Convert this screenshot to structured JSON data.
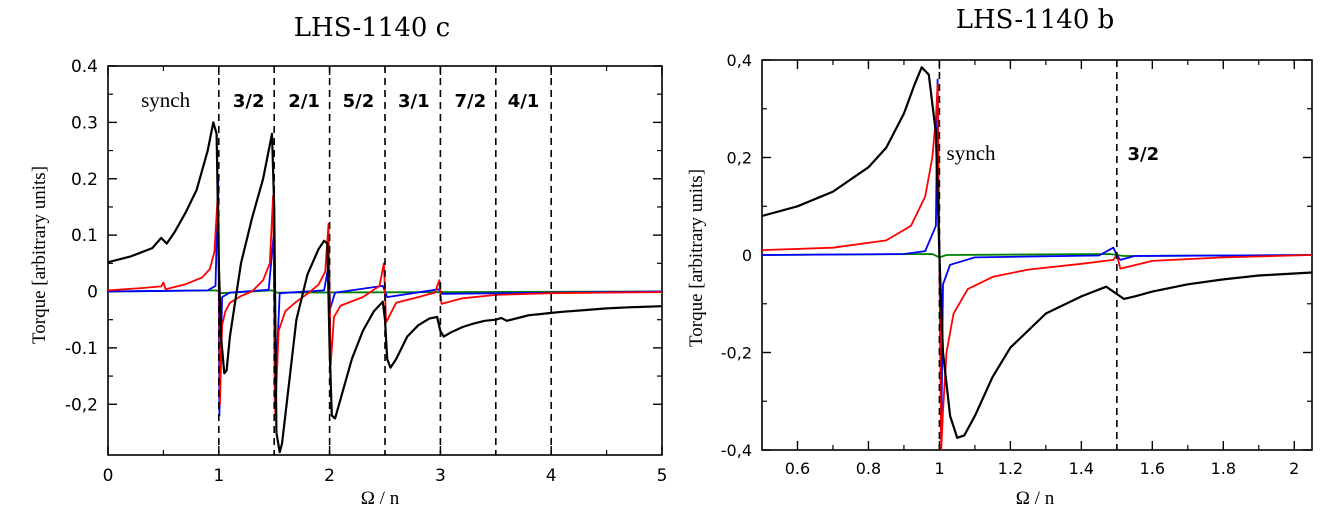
{
  "chart_data": [
    {
      "type": "line",
      "title": "LHS-1140 c",
      "xlabel": "Ω / n",
      "ylabel": "Torque [arbitrary units]",
      "xlim": [
        0,
        5
      ],
      "ylim": [
        -0.29,
        0.4
      ],
      "xticks": [
        0,
        1,
        2,
        3,
        4,
        5
      ],
      "xtick_labels": [
        "0",
        "1",
        "2",
        "3",
        "4",
        "5"
      ],
      "yticks": [
        0.4,
        0.3,
        0.2,
        0.1,
        0,
        -0.1,
        -0.2
      ],
      "ytick_labels": [
        "0.4",
        "0.3",
        "0.2",
        "0.1",
        "0",
        "-0.1",
        "-0,2"
      ],
      "resonances": [
        1,
        1.5,
        2,
        2.5,
        3,
        3.5,
        4
      ],
      "annotations": [
        {
          "text": "synch",
          "x": 0.52
        },
        {
          "text": "3/2",
          "x": 1.27
        },
        {
          "text": "2/1",
          "x": 1.77
        },
        {
          "text": "5/2",
          "x": 2.26
        },
        {
          "text": "3/1",
          "x": 2.76
        },
        {
          "text": "7/2",
          "x": 3.27
        },
        {
          "text": "4/1",
          "x": 3.75
        }
      ],
      "series": [
        {
          "name": "black",
          "color": "#000000",
          "x": [
            0,
            0.2,
            0.4,
            0.48,
            0.53,
            0.6,
            0.7,
            0.8,
            0.9,
            0.95,
            0.98,
            1.0,
            1.02,
            1.05,
            1.07,
            1.1,
            1.2,
            1.3,
            1.4,
            1.45,
            1.48,
            1.5,
            1.52,
            1.55,
            1.57,
            1.6,
            1.7,
            1.8,
            1.9,
            1.95,
            1.98,
            2.0,
            2.02,
            2.05,
            2.1,
            2.2,
            2.3,
            2.4,
            2.48,
            2.5,
            2.52,
            2.55,
            2.6,
            2.7,
            2.8,
            2.9,
            2.97,
            3.0,
            3.03,
            3.1,
            3.2,
            3.3,
            3.4,
            3.5,
            3.55,
            3.6,
            3.7,
            3.8,
            3.9,
            4.0,
            4.1,
            4.3,
            4.5,
            4.7,
            5.0
          ],
          "y": [
            0.052,
            0.062,
            0.077,
            0.095,
            0.085,
            0.105,
            0.14,
            0.18,
            0.25,
            0.3,
            0.28,
            0.05,
            -0.08,
            -0.145,
            -0.14,
            -0.08,
            0.05,
            0.13,
            0.2,
            0.25,
            0.28,
            0.15,
            -0.25,
            -0.285,
            -0.27,
            -0.22,
            -0.05,
            0.03,
            0.075,
            0.09,
            0.085,
            -0.1,
            -0.22,
            -0.225,
            -0.19,
            -0.12,
            -0.07,
            -0.035,
            -0.018,
            -0.05,
            -0.12,
            -0.135,
            -0.12,
            -0.08,
            -0.06,
            -0.048,
            -0.045,
            -0.07,
            -0.08,
            -0.072,
            -0.063,
            -0.057,
            -0.052,
            -0.05,
            -0.047,
            -0.052,
            -0.047,
            -0.042,
            -0.04,
            -0.038,
            -0.036,
            -0.033,
            -0.03,
            -0.028,
            -0.026
          ]
        },
        {
          "name": "red",
          "color": "#ff0000",
          "x": [
            0,
            0.3,
            0.48,
            0.5,
            0.52,
            0.7,
            0.85,
            0.92,
            0.96,
            0.99,
            1.0,
            1.01,
            1.03,
            1.06,
            1.1,
            1.2,
            1.3,
            1.4,
            1.46,
            1.49,
            1.5,
            1.51,
            1.54,
            1.6,
            1.7,
            1.8,
            1.9,
            1.96,
            1.99,
            2.0,
            2.01,
            2.04,
            2.1,
            2.3,
            2.45,
            2.49,
            2.5,
            2.51,
            2.6,
            2.8,
            2.95,
            2.99,
            3.0,
            3.01,
            3.2,
            3.5,
            4.0,
            4.5,
            5.0
          ],
          "y": [
            0.002,
            0.006,
            0.009,
            0.016,
            0.004,
            0.013,
            0.025,
            0.04,
            0.07,
            0.17,
            0.1,
            -0.2,
            -0.06,
            -0.035,
            -0.02,
            -0.008,
            0.0,
            0.02,
            0.05,
            0.17,
            0.0,
            -0.22,
            -0.07,
            -0.035,
            -0.018,
            -0.004,
            0.012,
            0.035,
            0.12,
            0.0,
            -0.13,
            -0.045,
            -0.025,
            -0.01,
            0.01,
            0.05,
            0.0,
            -0.055,
            -0.02,
            -0.01,
            -0.002,
            0.02,
            -0.005,
            -0.022,
            -0.012,
            -0.006,
            -0.003,
            -0.002,
            -0.001
          ]
        },
        {
          "name": "blue",
          "color": "#0000ff",
          "x": [
            0,
            0.9,
            0.97,
            0.995,
            1.0,
            1.005,
            1.03,
            1.1,
            1.45,
            1.495,
            1.5,
            1.505,
            1.55,
            1.95,
            1.995,
            2.0,
            2.005,
            2.05,
            2.48,
            2.5,
            2.52,
            2.98,
            3.0,
            3.02,
            5.0
          ],
          "y": [
            0,
            0.002,
            0.01,
            0.2,
            0.0,
            -0.22,
            -0.01,
            -0.002,
            0.003,
            0.1,
            0.0,
            -0.2,
            -0.003,
            0.002,
            0.05,
            0.0,
            -0.03,
            -0.002,
            0.01,
            0.0,
            -0.01,
            0.004,
            0.0,
            -0.004,
            0.0
          ]
        },
        {
          "name": "green",
          "color": "#008000",
          "x": [
            0,
            0.98,
            1.0,
            1.02,
            1.48,
            1.5,
            1.52,
            5.0
          ],
          "y": [
            0,
            0.002,
            0.0,
            -0.003,
            0.002,
            0.0,
            -0.002,
            0.0
          ]
        }
      ]
    },
    {
      "type": "line",
      "title": "LHS-1140  b",
      "xlabel": "Ω / n",
      "ylabel": "Torque [arbitrary units]",
      "xlim": [
        0.5,
        2.05
      ],
      "ylim": [
        -0.4,
        0.4
      ],
      "xticks": [
        0.6,
        0.8,
        1,
        1.2,
        1.4,
        1.6,
        1.8,
        2
      ],
      "xtick_labels": [
        "0.6",
        "0.8",
        "1",
        "1.2",
        "1.4",
        "1.6",
        "1.8",
        "2"
      ],
      "yticks": [
        0.4,
        0.2,
        0,
        -0.2,
        -0.4
      ],
      "ytick_labels": [
        "0,4",
        "0,2",
        "0",
        "-0,2",
        "-0,4"
      ],
      "resonances": [
        1,
        1.5
      ],
      "annotations": [
        {
          "text": "synch",
          "x": 1.02
        },
        {
          "text": "3/2",
          "x": 1.53
        }
      ],
      "series": [
        {
          "name": "black",
          "color": "#000000",
          "x": [
            0.5,
            0.6,
            0.7,
            0.8,
            0.85,
            0.9,
            0.93,
            0.95,
            0.97,
            0.99,
            1.0,
            1.01,
            1.03,
            1.05,
            1.07,
            1.1,
            1.15,
            1.2,
            1.3,
            1.4,
            1.47,
            1.5,
            1.52,
            1.55,
            1.6,
            1.7,
            1.8,
            1.9,
            2.0,
            2.05
          ],
          "y": [
            0.08,
            0.1,
            0.13,
            0.18,
            0.22,
            0.29,
            0.35,
            0.385,
            0.37,
            0.25,
            0.0,
            -0.2,
            -0.33,
            -0.375,
            -0.37,
            -0.33,
            -0.25,
            -0.19,
            -0.12,
            -0.085,
            -0.065,
            -0.08,
            -0.09,
            -0.085,
            -0.075,
            -0.06,
            -0.05,
            -0.042,
            -0.038,
            -0.036
          ]
        },
        {
          "name": "red",
          "color": "#ff0000",
          "x": [
            0.5,
            0.7,
            0.85,
            0.92,
            0.96,
            0.98,
            0.99,
            0.995,
            1.0,
            1.005,
            1.01,
            1.02,
            1.04,
            1.08,
            1.15,
            1.25,
            1.4,
            1.49,
            1.5,
            1.51,
            1.6,
            1.8,
            2.05
          ],
          "y": [
            0.01,
            0.015,
            0.03,
            0.06,
            0.12,
            0.2,
            0.28,
            0.35,
            0.0,
            -0.4,
            -0.32,
            -0.2,
            -0.12,
            -0.07,
            -0.045,
            -0.03,
            -0.018,
            -0.01,
            0.0,
            -0.028,
            -0.012,
            -0.005,
            0.0
          ]
        },
        {
          "name": "blue",
          "color": "#0000ff",
          "x": [
            0.5,
            0.9,
            0.96,
            0.99,
            0.995,
            1.0,
            1.005,
            1.01,
            1.03,
            1.1,
            1.45,
            1.49,
            1.5,
            1.51,
            1.55,
            2.05
          ],
          "y": [
            0.0,
            0.002,
            0.008,
            0.06,
            0.36,
            0.0,
            -0.38,
            -0.06,
            -0.02,
            -0.005,
            -0.001,
            0.015,
            0.0,
            -0.01,
            -0.002,
            0.0
          ]
        },
        {
          "name": "green",
          "color": "#008000",
          "x": [
            0.5,
            0.98,
            1.0,
            1.02,
            1.48,
            1.5,
            1.52,
            2.05
          ],
          "y": [
            0.0,
            0.002,
            -0.005,
            0.0,
            0.002,
            0.0,
            -0.002,
            0.0
          ]
        }
      ]
    }
  ]
}
